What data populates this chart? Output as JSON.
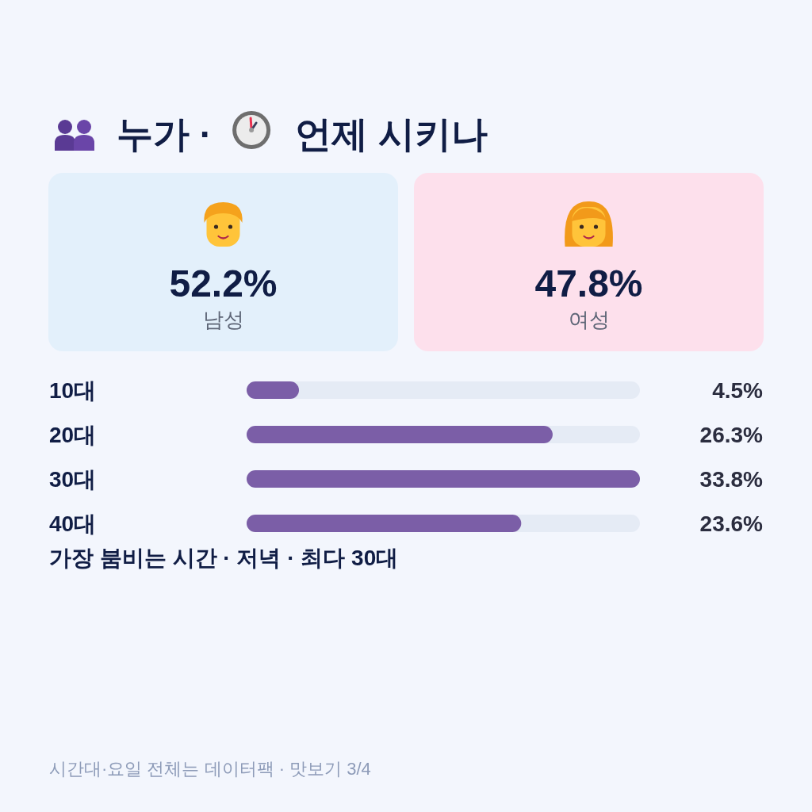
{
  "chart_data": [
    {
      "type": "other",
      "title": "누가 · 언제 시키나",
      "categories": [
        "남성",
        "여성"
      ],
      "values": [
        52.2,
        47.8
      ],
      "value_labels": [
        "52.2%",
        "47.8%"
      ],
      "colors": [
        "#e3f0fb",
        "#fde0ec"
      ]
    },
    {
      "type": "bar",
      "orientation": "horizontal",
      "categories": [
        "10대",
        "20대",
        "30대",
        "40대"
      ],
      "values": [
        4.5,
        26.3,
        33.8,
        23.6
      ],
      "value_labels": [
        "4.5%",
        "26.3%",
        "33.8%",
        "23.6%"
      ],
      "color": "#7b5ea7",
      "annotations": [
        "가장 붐비는 시간 · 저녁 · 최다 30대",
        "시간대·요일 전체는 데이터팩 · 맛보기 3/4"
      ]
    }
  ]
}
